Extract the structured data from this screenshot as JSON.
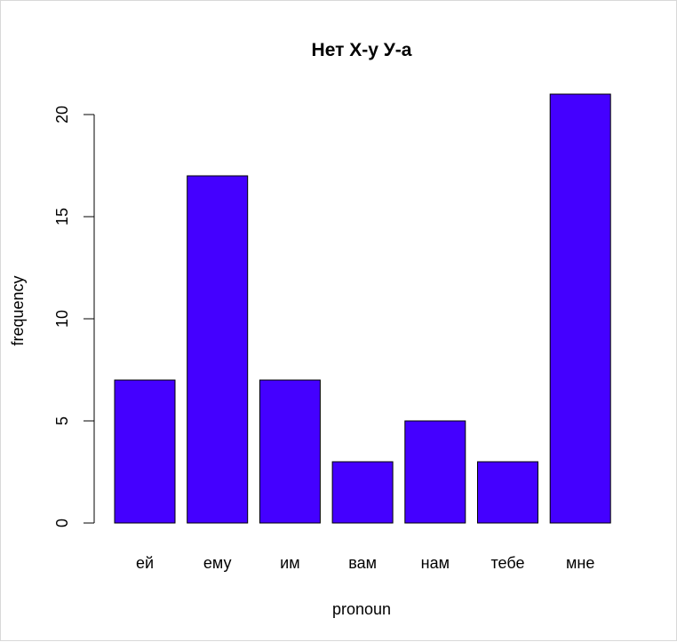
{
  "chart_data": {
    "type": "bar",
    "title": "Нет Х-у У-а",
    "xlabel": "pronoun",
    "ylabel": "frequency",
    "categories": [
      "ей",
      "ему",
      "им",
      "вам",
      "нам",
      "тебе",
      "мне"
    ],
    "values": [
      7,
      17,
      7,
      3,
      5,
      3,
      21
    ],
    "ylim": [
      0,
      21
    ],
    "yticks": [
      0,
      5,
      10,
      15,
      20
    ],
    "ytick_labels": [
      "0",
      "5",
      "10",
      "15",
      "20"
    ],
    "bar_color": "#4400FF",
    "grid": false,
    "legend": "none"
  }
}
